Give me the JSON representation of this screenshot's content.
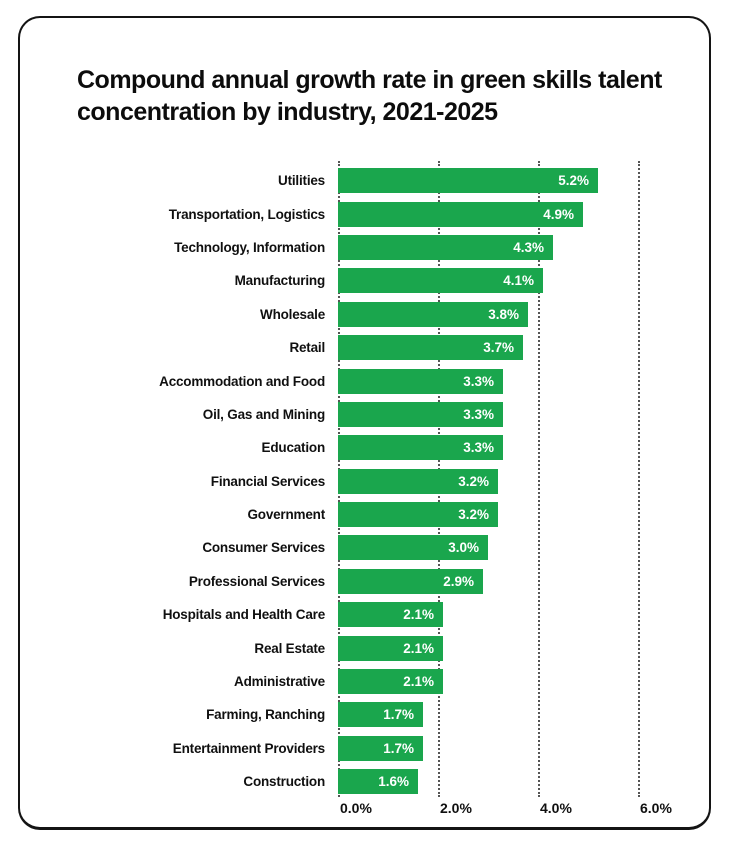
{
  "chart_data": {
    "type": "bar",
    "orientation": "horizontal",
    "title": "Compound annual growth rate in green skills talent concentration by industry, 2021-2025",
    "categories": [
      "Utilities",
      "Transportation, Logistics",
      "Technology, Information",
      "Manufacturing",
      "Wholesale",
      "Retail",
      "Accommodation and Food",
      "Oil, Gas and Mining",
      "Education",
      "Financial Services",
      "Government",
      "Consumer Services",
      "Professional Services",
      "Hospitals and Health Care",
      "Real Estate",
      "Administrative",
      "Farming, Ranching",
      "Entertainment Providers",
      "Construction"
    ],
    "values": [
      5.2,
      4.9,
      4.3,
      4.1,
      3.8,
      3.7,
      3.3,
      3.3,
      3.3,
      3.2,
      3.2,
      3.0,
      2.9,
      2.1,
      2.1,
      2.1,
      1.7,
      1.7,
      1.6
    ],
    "value_labels": [
      "5.2%",
      "4.9%",
      "4.3%",
      "4.1%",
      "3.8%",
      "3.7%",
      "3.3%",
      "3.3%",
      "3.3%",
      "3.2%",
      "3.2%",
      "3.0%",
      "2.9%",
      "2.1%",
      "2.1%",
      "2.1%",
      "1.7%",
      "1.7%",
      "1.6%"
    ],
    "xlabel": "",
    "ylabel": "",
    "xlim": [
      0,
      6.6
    ],
    "ticks": [
      0,
      2,
      4,
      6
    ],
    "tick_labels": [
      "0.0%",
      "2.0%",
      "4.0%",
      "6.0%"
    ],
    "grid": "vertical-dotted",
    "legend": "none",
    "colors": {
      "bar": "#1aa64d",
      "value_text": "#ffffff",
      "label_text": "#101010",
      "grid": "#555555",
      "border": "#141414",
      "title": "#0c0c0c",
      "background": "#ffffff"
    }
  }
}
